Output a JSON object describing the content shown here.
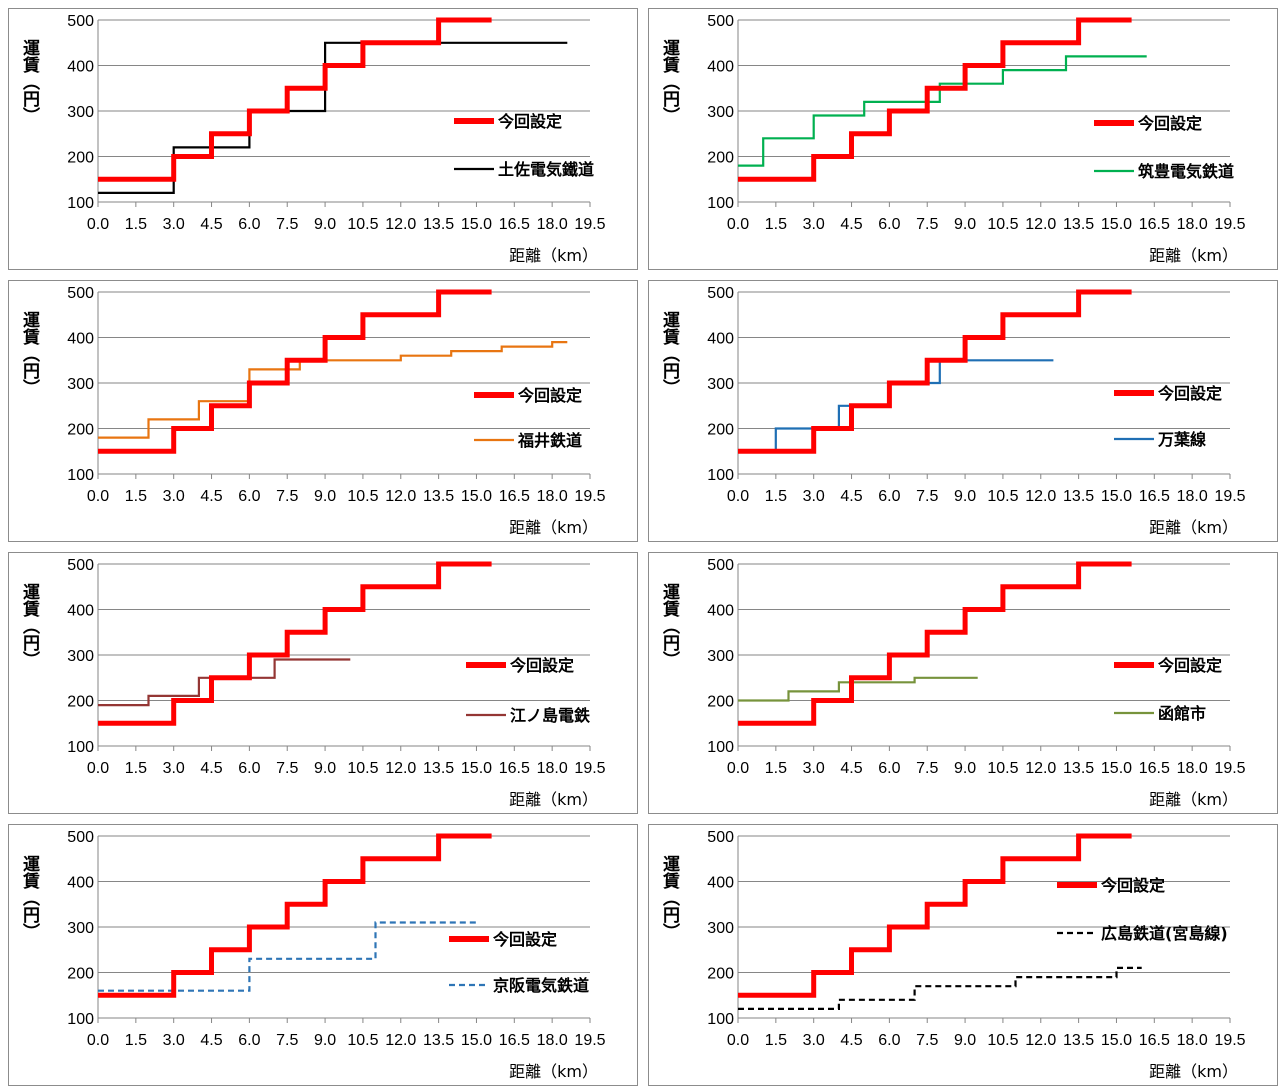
{
  "chart_data": [
    {
      "type": "line",
      "xlabel": "距離（km）",
      "ylabel": "運賃（円）",
      "xlim": [
        0,
        19.5
      ],
      "ylim": [
        100,
        500
      ],
      "x_ticks": [
        "0.0",
        "1.5",
        "3.0",
        "4.5",
        "6.0",
        "7.5",
        "9.0",
        "10.5",
        "12.0",
        "13.5",
        "15.0",
        "16.5",
        "18.0",
        "19.5"
      ],
      "y_ticks": [
        "100",
        "200",
        "300",
        "400",
        "500"
      ],
      "grid": "horizontal",
      "legend_position": "right",
      "series": [
        {
          "name": "今回設定",
          "color": "#ff0000",
          "style": "solid-thick",
          "x": [
            0,
            3,
            3,
            4.5,
            4.5,
            6,
            6,
            7.5,
            7.5,
            9,
            9,
            10.5,
            10.5,
            13.5,
            13.5,
            15.6
          ],
          "y": [
            150,
            150,
            200,
            200,
            250,
            250,
            300,
            300,
            350,
            350,
            400,
            400,
            450,
            450,
            500,
            500
          ]
        },
        {
          "name": "土佐電気鐵道",
          "color": "#000000",
          "style": "solid",
          "x": [
            0,
            3,
            3,
            6,
            6,
            9,
            9,
            18.6
          ],
          "y": [
            120,
            120,
            220,
            220,
            300,
            300,
            450,
            450
          ]
        }
      ]
    },
    {
      "type": "line",
      "xlabel": "距離（km）",
      "ylabel": "運賃（円）",
      "xlim": [
        0,
        19.5
      ],
      "ylim": [
        100,
        500
      ],
      "x_ticks": [
        "0.0",
        "1.5",
        "3.0",
        "4.5",
        "6.0",
        "7.5",
        "9.0",
        "10.5",
        "12.0",
        "13.5",
        "15.0",
        "16.5",
        "18.0",
        "19.5"
      ],
      "y_ticks": [
        "100",
        "200",
        "300",
        "400",
        "500"
      ],
      "grid": "horizontal",
      "legend_position": "right",
      "series": [
        {
          "name": "今回設定",
          "color": "#ff0000",
          "style": "solid-thick",
          "x": [
            0,
            3,
            3,
            4.5,
            4.5,
            6,
            6,
            7.5,
            7.5,
            9,
            9,
            10.5,
            10.5,
            13.5,
            13.5,
            15.6
          ],
          "y": [
            150,
            150,
            200,
            200,
            250,
            250,
            300,
            300,
            350,
            350,
            400,
            400,
            450,
            450,
            500,
            500
          ]
        },
        {
          "name": "筑豊電気鉄道",
          "color": "#00b050",
          "style": "solid",
          "x": [
            0,
            1,
            1,
            3,
            3,
            5,
            5,
            8,
            8,
            10.5,
            10.5,
            13,
            13,
            16.2
          ],
          "y": [
            180,
            180,
            240,
            240,
            290,
            290,
            320,
            320,
            360,
            360,
            390,
            390,
            420,
            420
          ]
        }
      ]
    },
    {
      "type": "line",
      "xlabel": "距離（km）",
      "ylabel": "運賃（円）",
      "xlim": [
        0,
        19.5
      ],
      "ylim": [
        100,
        500
      ],
      "x_ticks": [
        "0.0",
        "1.5",
        "3.0",
        "4.5",
        "6.0",
        "7.5",
        "9.0",
        "10.5",
        "12.0",
        "13.5",
        "15.0",
        "16.5",
        "18.0",
        "19.5"
      ],
      "y_ticks": [
        "100",
        "200",
        "300",
        "400",
        "500"
      ],
      "grid": "horizontal",
      "legend_position": "right",
      "series": [
        {
          "name": "今回設定",
          "color": "#ff0000",
          "style": "solid-thick",
          "x": [
            0,
            3,
            3,
            4.5,
            4.5,
            6,
            6,
            7.5,
            7.5,
            9,
            9,
            10.5,
            10.5,
            13.5,
            13.5,
            15.6
          ],
          "y": [
            150,
            150,
            200,
            200,
            250,
            250,
            300,
            300,
            350,
            350,
            400,
            400,
            450,
            450,
            500,
            500
          ]
        },
        {
          "name": "福井鉄道",
          "color": "#e87511",
          "style": "solid",
          "x": [
            0,
            2,
            2,
            4,
            4,
            6,
            6,
            8,
            8,
            12,
            12,
            14,
            14,
            16,
            16,
            18,
            18,
            18.6
          ],
          "y": [
            180,
            180,
            220,
            220,
            260,
            260,
            330,
            330,
            350,
            350,
            360,
            360,
            370,
            370,
            380,
            380,
            390,
            390
          ]
        }
      ]
    },
    {
      "type": "line",
      "xlabel": "距離（km）",
      "ylabel": "運賃（円）",
      "xlim": [
        0,
        19.5
      ],
      "ylim": [
        100,
        500
      ],
      "x_ticks": [
        "0.0",
        "1.5",
        "3.0",
        "4.5",
        "6.0",
        "7.5",
        "9.0",
        "10.5",
        "12.0",
        "13.5",
        "15.0",
        "16.5",
        "18.0",
        "19.5"
      ],
      "y_ticks": [
        "100",
        "200",
        "300",
        "400",
        "500"
      ],
      "grid": "horizontal",
      "legend_position": "right",
      "series": [
        {
          "name": "今回設定",
          "color": "#ff0000",
          "style": "solid-thick",
          "x": [
            0,
            3,
            3,
            4.5,
            4.5,
            6,
            6,
            7.5,
            7.5,
            9,
            9,
            10.5,
            10.5,
            13.5,
            13.5,
            15.6
          ],
          "y": [
            150,
            150,
            200,
            200,
            250,
            250,
            300,
            300,
            350,
            350,
            400,
            400,
            450,
            450,
            500,
            500
          ]
        },
        {
          "name": "万葉線",
          "color": "#1f6fb4",
          "style": "solid",
          "x": [
            0,
            1.5,
            1.5,
            3,
            3,
            4,
            4,
            6,
            6,
            8,
            8,
            12.5
          ],
          "y": [
            150,
            150,
            200,
            200,
            200,
            200,
            250,
            250,
            300,
            300,
            350,
            350
          ]
        }
      ]
    },
    {
      "type": "line",
      "xlabel": "距離（km）",
      "ylabel": "運賃（円）",
      "xlim": [
        0,
        19.5
      ],
      "ylim": [
        100,
        500
      ],
      "x_ticks": [
        "0.0",
        "1.5",
        "3.0",
        "4.5",
        "6.0",
        "7.5",
        "9.0",
        "10.5",
        "12.0",
        "13.5",
        "15.0",
        "16.5",
        "18.0",
        "19.5"
      ],
      "y_ticks": [
        "100",
        "200",
        "300",
        "400",
        "500"
      ],
      "grid": "horizontal",
      "legend_position": "right",
      "series": [
        {
          "name": "今回設定",
          "color": "#ff0000",
          "style": "solid-thick",
          "x": [
            0,
            3,
            3,
            4.5,
            4.5,
            6,
            6,
            7.5,
            7.5,
            9,
            9,
            10.5,
            10.5,
            13.5,
            13.5,
            15.6
          ],
          "y": [
            150,
            150,
            200,
            200,
            250,
            250,
            300,
            300,
            350,
            350,
            400,
            400,
            450,
            450,
            500,
            500
          ]
        },
        {
          "name": "江ノ島電鉄",
          "color": "#943634",
          "style": "solid",
          "x": [
            0,
            2,
            2,
            4,
            4,
            7,
            7,
            10
          ],
          "y": [
            190,
            190,
            210,
            210,
            250,
            250,
            290,
            290
          ]
        }
      ]
    },
    {
      "type": "line",
      "xlabel": "距離（km）",
      "ylabel": "運賃（円）",
      "xlim": [
        0,
        19.5
      ],
      "ylim": [
        100,
        500
      ],
      "x_ticks": [
        "0.0",
        "1.5",
        "3.0",
        "4.5",
        "6.0",
        "7.5",
        "9.0",
        "10.5",
        "12.0",
        "13.5",
        "15.0",
        "16.5",
        "18.0",
        "19.5"
      ],
      "y_ticks": [
        "100",
        "200",
        "300",
        "400",
        "500"
      ],
      "grid": "horizontal",
      "legend_position": "right",
      "series": [
        {
          "name": "今回設定",
          "color": "#ff0000",
          "style": "solid-thick",
          "x": [
            0,
            3,
            3,
            4.5,
            4.5,
            6,
            6,
            7.5,
            7.5,
            9,
            9,
            10.5,
            10.5,
            13.5,
            13.5,
            15.6
          ],
          "y": [
            150,
            150,
            200,
            200,
            250,
            250,
            300,
            300,
            350,
            350,
            400,
            400,
            450,
            450,
            500,
            500
          ]
        },
        {
          "name": "函館市",
          "color": "#77933c",
          "style": "solid",
          "x": [
            0,
            2,
            2,
            4,
            4,
            7,
            7,
            9.5
          ],
          "y": [
            200,
            200,
            220,
            220,
            240,
            240,
            250,
            250
          ]
        }
      ]
    },
    {
      "type": "line",
      "xlabel": "距離（km）",
      "ylabel": "運賃（円）",
      "xlim": [
        0,
        19.5
      ],
      "ylim": [
        100,
        500
      ],
      "x_ticks": [
        "0.0",
        "1.5",
        "3.0",
        "4.5",
        "6.0",
        "7.5",
        "9.0",
        "10.5",
        "12.0",
        "13.5",
        "15.0",
        "16.5",
        "18.0",
        "19.5"
      ],
      "y_ticks": [
        "100",
        "200",
        "300",
        "400",
        "500"
      ],
      "grid": "horizontal",
      "legend_position": "right",
      "series": [
        {
          "name": "今回設定",
          "color": "#ff0000",
          "style": "solid-thick",
          "x": [
            0,
            3,
            3,
            4.5,
            4.5,
            6,
            6,
            7.5,
            7.5,
            9,
            9,
            10.5,
            10.5,
            13.5,
            13.5,
            15.6
          ],
          "y": [
            150,
            150,
            200,
            200,
            250,
            250,
            300,
            300,
            350,
            350,
            400,
            400,
            450,
            450,
            500,
            500
          ]
        },
        {
          "name": "京阪電気鉄道",
          "color": "#2e75b6",
          "style": "dashed",
          "x": [
            0,
            6,
            6,
            11,
            11,
            15
          ],
          "y": [
            160,
            160,
            230,
            230,
            310,
            310
          ]
        }
      ]
    },
    {
      "type": "line",
      "xlabel": "距離（km）",
      "ylabel": "運賃（円）",
      "xlim": [
        0,
        19.5
      ],
      "ylim": [
        100,
        500
      ],
      "x_ticks": [
        "0.0",
        "1.5",
        "3.0",
        "4.5",
        "6.0",
        "7.5",
        "9.0",
        "10.5",
        "12.0",
        "13.5",
        "15.0",
        "16.5",
        "18.0",
        "19.5"
      ],
      "y_ticks": [
        "100",
        "200",
        "300",
        "400",
        "500"
      ],
      "grid": "horizontal",
      "legend_position": "right",
      "series": [
        {
          "name": "今回設定",
          "color": "#ff0000",
          "style": "solid-thick",
          "x": [
            0,
            3,
            3,
            4.5,
            4.5,
            6,
            6,
            7.5,
            7.5,
            9,
            9,
            10.5,
            10.5,
            13.5,
            13.5,
            15.6
          ],
          "y": [
            150,
            150,
            200,
            200,
            250,
            250,
            300,
            300,
            350,
            350,
            400,
            400,
            450,
            450,
            500,
            500
          ]
        },
        {
          "name": "広島鉄道(宮島線)",
          "color": "#000000",
          "style": "dashed",
          "x": [
            0,
            4,
            4,
            7,
            7,
            11,
            11,
            15,
            15,
            16
          ],
          "y": [
            120,
            120,
            140,
            140,
            170,
            170,
            190,
            190,
            210,
            210
          ]
        }
      ]
    }
  ]
}
